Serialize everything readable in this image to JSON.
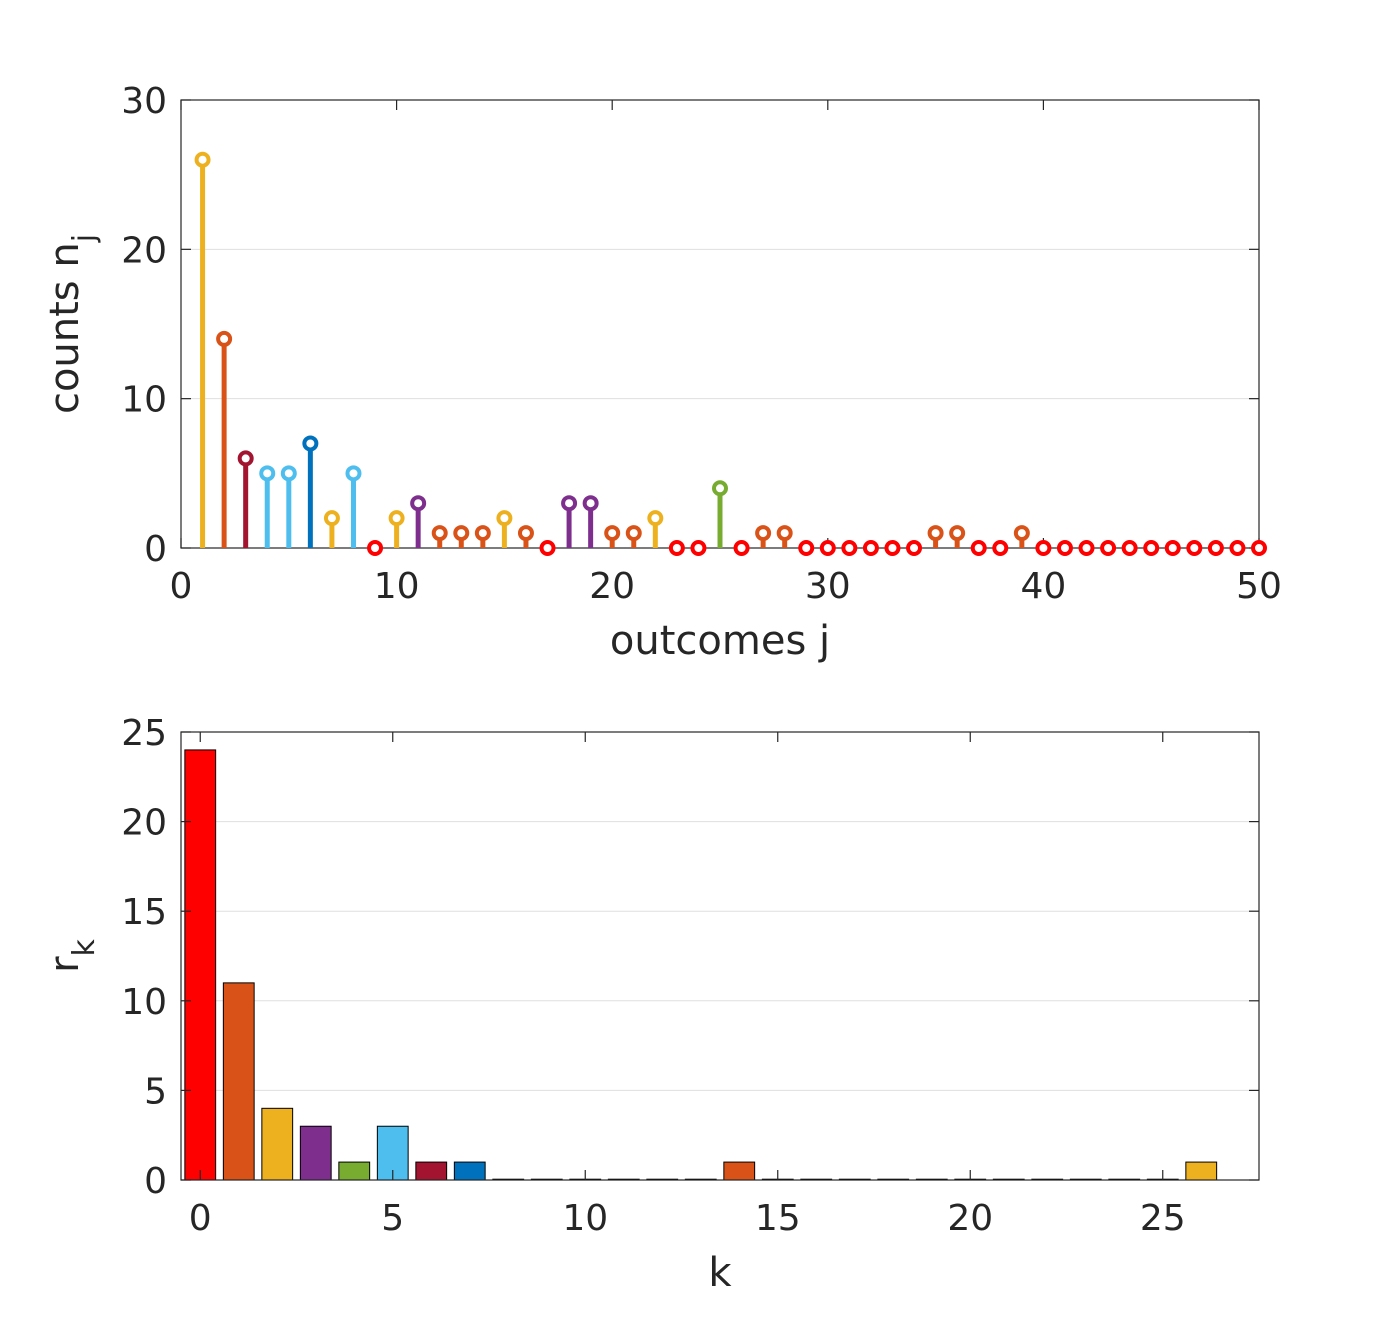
{
  "chart_data": [
    {
      "type": "stem",
      "xlabel": "outcomes j",
      "ylabel": {
        "main": "counts n",
        "subscript": "j"
      },
      "xlim": [
        0,
        50
      ],
      "ylim": [
        0,
        30
      ],
      "xticks": [
        0,
        10,
        20,
        30,
        40,
        50
      ],
      "yticks": [
        0,
        10,
        20,
        30
      ],
      "grid": "y",
      "x": [
        1,
        2,
        3,
        4,
        5,
        6,
        7,
        8,
        9,
        10,
        11,
        12,
        13,
        14,
        15,
        16,
        17,
        18,
        19,
        20,
        21,
        22,
        23,
        24,
        25,
        26,
        27,
        28,
        29,
        30,
        31,
        32,
        33,
        34,
        35,
        36,
        37,
        38,
        39,
        40,
        41,
        42,
        43,
        44,
        45,
        46,
        47,
        48,
        49,
        50
      ],
      "values": [
        26,
        14,
        6,
        5,
        5,
        7,
        2,
        5,
        0,
        2,
        3,
        1,
        1,
        1,
        2,
        1,
        0,
        3,
        3,
        1,
        1,
        2,
        0,
        0,
        4,
        0,
        1,
        1,
        0,
        0,
        0,
        0,
        0,
        0,
        1,
        1,
        0,
        0,
        1,
        0,
        0,
        0,
        0,
        0,
        0,
        0,
        0,
        0,
        0,
        0
      ],
      "colors_by_count": {
        "0": "#ff0000",
        "1": "#d95319",
        "2": "#edb120",
        "3": "#7e2f8e",
        "4": "#77ac30",
        "5": "#4dbeee",
        "6": "#a2142f",
        "7": "#0072bd",
        "14": "#d95319",
        "26": "#edb120"
      }
    },
    {
      "type": "bar",
      "xlabel": "k",
      "ylabel": {
        "main": "r",
        "subscript": "k"
      },
      "xlim": [
        -0.5,
        27.5
      ],
      "ylim": [
        0,
        25
      ],
      "xticks": [
        0,
        5,
        10,
        15,
        20,
        25
      ],
      "yticks": [
        0,
        5,
        10,
        15,
        20,
        25
      ],
      "grid": "y",
      "x": [
        0,
        1,
        2,
        3,
        4,
        5,
        6,
        7,
        8,
        9,
        10,
        11,
        12,
        13,
        14,
        15,
        16,
        17,
        18,
        19,
        20,
        21,
        22,
        23,
        24,
        25,
        26
      ],
      "values": [
        24,
        11,
        4,
        3,
        1,
        3,
        1,
        1,
        0,
        0,
        0,
        0,
        0,
        0,
        1,
        0,
        0,
        0,
        0,
        0,
        0,
        0,
        0,
        0,
        0,
        0,
        1
      ],
      "colors": [
        "#ff0000",
        "#d95319",
        "#edb120",
        "#7e2f8e",
        "#77ac30",
        "#4dbeee",
        "#a2142f",
        "#0072bd",
        "#ff0000",
        "#d95319",
        "#edb120",
        "#7e2f8e",
        "#77ac30",
        "#4dbeee",
        "#d95319",
        "#0072bd",
        "#ff0000",
        "#d95319",
        "#edb120",
        "#7e2f8e",
        "#77ac30",
        "#4dbeee",
        "#a2142f",
        "#0072bd",
        "#ff0000",
        "#d95319",
        "#edb120"
      ]
    }
  ]
}
